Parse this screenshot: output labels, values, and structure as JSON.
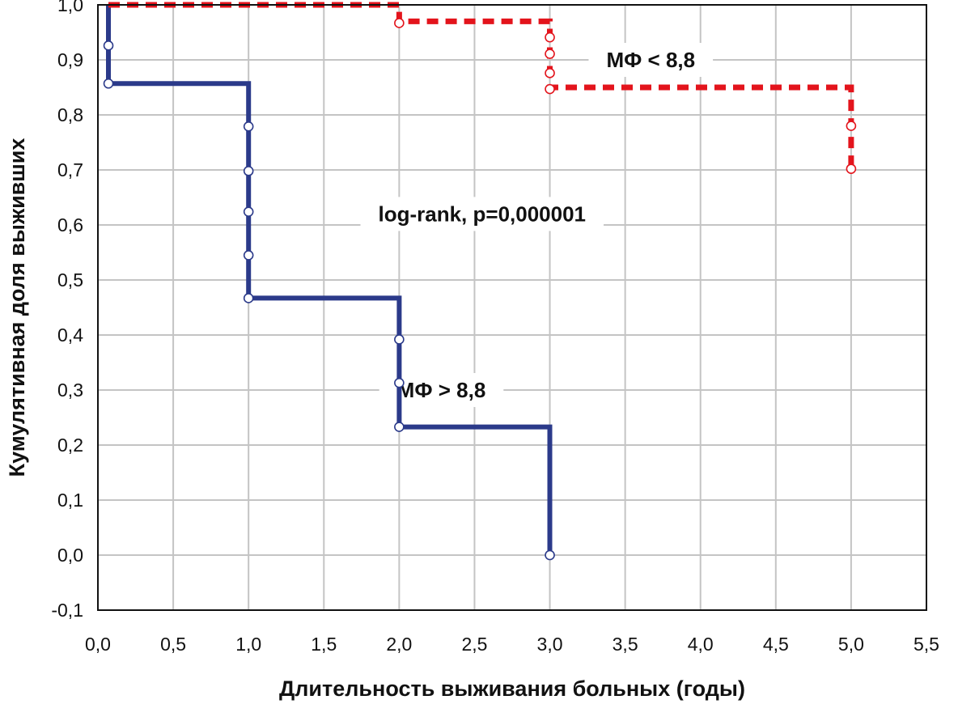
{
  "chart_data": {
    "type": "line",
    "title": "",
    "xlabel": "Длительность выживания больных (годы)",
    "ylabel": "Кумулятивная доля выживших",
    "xlim": [
      0,
      5.5
    ],
    "ylim": [
      -0.1,
      1.0
    ],
    "x_ticks": [
      0,
      0.5,
      1,
      1.5,
      2,
      2.5,
      3,
      3.5,
      4,
      4.5,
      5,
      5.5
    ],
    "x_tick_labels": [
      "0,0",
      "0,5",
      "1,0",
      "1,5",
      "2,0",
      "2,5",
      "3,0",
      "3,5",
      "4,0",
      "4,5",
      "5,0",
      "5,5"
    ],
    "y_ticks": [
      -0.1,
      0,
      0.1,
      0.2,
      0.3,
      0.4,
      0.5,
      0.6,
      0.7,
      0.8,
      0.9,
      1.0
    ],
    "y_tick_labels": [
      "-0,1",
      "0,0",
      "0,1",
      "0,2",
      "0,3",
      "0,4",
      "0,5",
      "0,6",
      "0,7",
      "0,8",
      "0,9",
      "1,0"
    ],
    "grid": true,
    "series": [
      {
        "color": "#2b3a8a",
        "style": "solid",
        "step": [
          [
            0.07,
            1.0
          ],
          [
            0.07,
            0.857
          ],
          [
            1.0,
            0.857
          ],
          [
            1.0,
            0.467
          ],
          [
            2.0,
            0.467
          ],
          [
            2.0,
            0.233
          ],
          [
            3.0,
            0.233
          ],
          [
            3.0,
            0.0
          ]
        ],
        "censored": [
          [
            0.07,
            0.926
          ],
          [
            0.07,
            0.857
          ],
          [
            1.0,
            0.779
          ],
          [
            1.0,
            0.698
          ],
          [
            1.0,
            0.624
          ],
          [
            1.0,
            0.545
          ],
          [
            1.0,
            0.467
          ],
          [
            2.0,
            0.392
          ],
          [
            2.0,
            0.313
          ],
          [
            2.0,
            0.233
          ],
          [
            3.0,
            0.0
          ]
        ]
      },
      {
        "color": "#e3141c",
        "style": "dashed",
        "step": [
          [
            0.07,
            1.0
          ],
          [
            2.0,
            1.0
          ],
          [
            2.0,
            0.97
          ],
          [
            3.0,
            0.97
          ],
          [
            3.0,
            0.85
          ],
          [
            5.0,
            0.85
          ],
          [
            5.0,
            0.702
          ]
        ],
        "censored": [
          [
            2.0,
            0.967
          ],
          [
            3.0,
            0.941
          ],
          [
            3.0,
            0.911
          ],
          [
            3.0,
            0.876
          ],
          [
            3.0,
            0.847
          ],
          [
            5.0,
            0.78
          ],
          [
            5.0,
            0.702
          ]
        ]
      }
    ],
    "annotations": [
      {
        "text": "МФ < 8,8",
        "x": 3.67,
        "y": 0.9
      },
      {
        "text": "log-rank, p=0,000001",
        "x": 2.55,
        "y": 0.62
      },
      {
        "text": "МФ > 8,8",
        "x": 2.28,
        "y": 0.3
      }
    ]
  }
}
